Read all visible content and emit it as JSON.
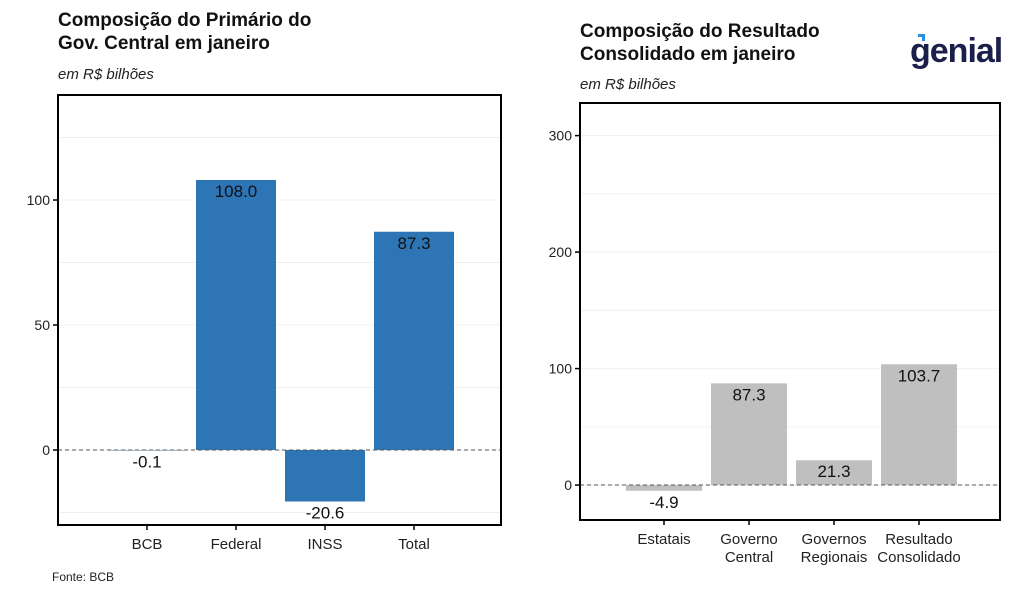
{
  "chart_data": [
    {
      "type": "bar",
      "title": "Composição do Primário do Gov. Central em janeiro",
      "subtitle": "em R$ bilhões",
      "categories": [
        "BCB",
        "Federal",
        "INSS",
        "Total"
      ],
      "values": [
        -0.1,
        108.0,
        -20.6,
        87.3
      ],
      "labels": [
        "-0.1",
        "108.0",
        "-20.6",
        "87.3"
      ],
      "ylim": [
        -30,
        142
      ],
      "yticks": [
        0,
        50,
        100
      ],
      "color": "#2e75b6",
      "xlabel": "",
      "ylabel": ""
    },
    {
      "type": "bar",
      "title": "Composição do Resultado Consolidado em janeiro",
      "subtitle": "em R$ bilhões",
      "categories": [
        "Estatais",
        "Governo\nCentral",
        "Governos\nRegionais",
        "Resultado\nConsolidado"
      ],
      "values": [
        -4.9,
        87.3,
        21.3,
        103.7
      ],
      "labels": [
        "-4.9",
        "87.3",
        "21.3",
        "103.7"
      ],
      "ylim": [
        -30,
        328
      ],
      "yticks": [
        0,
        100,
        200,
        300
      ],
      "color": "#bfbfbf",
      "xlabel": "",
      "ylabel": ""
    }
  ],
  "left": {
    "title1": "Composição do Primário do",
    "title2": "Gov. Central em janeiro",
    "subtitle": "em R$ bilhões"
  },
  "right": {
    "title1": "Composição do Resultado",
    "title2": "Consolidado em janeiro",
    "subtitle": "em R$ bilhões"
  },
  "source": "Fonte: BCB",
  "logo": "genial"
}
